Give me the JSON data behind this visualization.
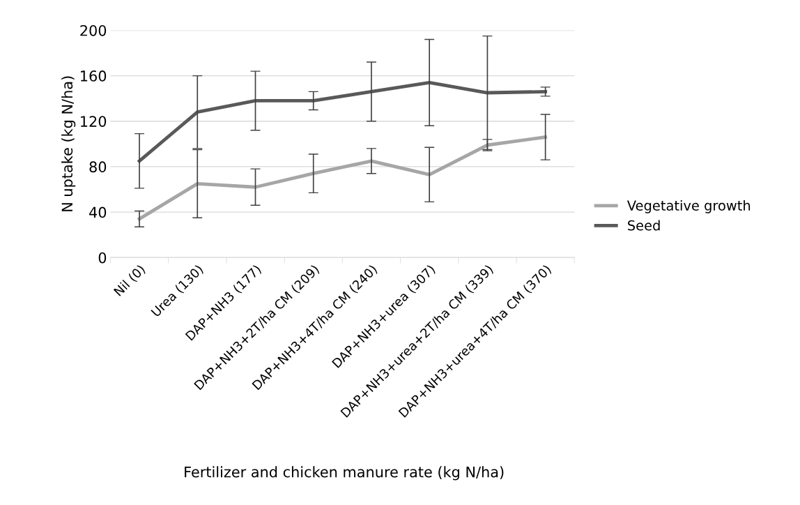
{
  "chart_data": {
    "type": "line",
    "xlabel": "Fertilizer and chicken manure rate (kg N/ha)",
    "ylabel": "N uptake (kg N/ha)",
    "categories": [
      "Nil (0)",
      "Urea (130)",
      "DAP+NH3 (177)",
      "DAP+NH3+2T/ha CM (209)",
      "DAP+NH3+4T/ha CM (240)",
      "DAP+NH3+urea (307)",
      "DAP+NH3+urea+2T/ha CM (339)",
      "DAP+NH3+urea+4T/ha CM (370)"
    ],
    "series": [
      {
        "name": "Vegetative growth",
        "color": "#a6a6a6",
        "values": [
          34,
          65,
          62,
          74,
          85,
          73,
          99,
          106
        ],
        "errors": [
          7,
          30,
          16,
          17,
          11,
          24,
          5,
          20
        ]
      },
      {
        "name": "Seed",
        "color": "#595959",
        "values": [
          85,
          128,
          138,
          138,
          146,
          154,
          145,
          146
        ],
        "errors": [
          24,
          32,
          26,
          8,
          26,
          38,
          50,
          4
        ]
      }
    ],
    "ylim": [
      0,
      200
    ],
    "yticks": [
      0,
      40,
      80,
      120,
      160,
      200
    ],
    "grid": "y",
    "legend": "right",
    "marker": "none"
  }
}
